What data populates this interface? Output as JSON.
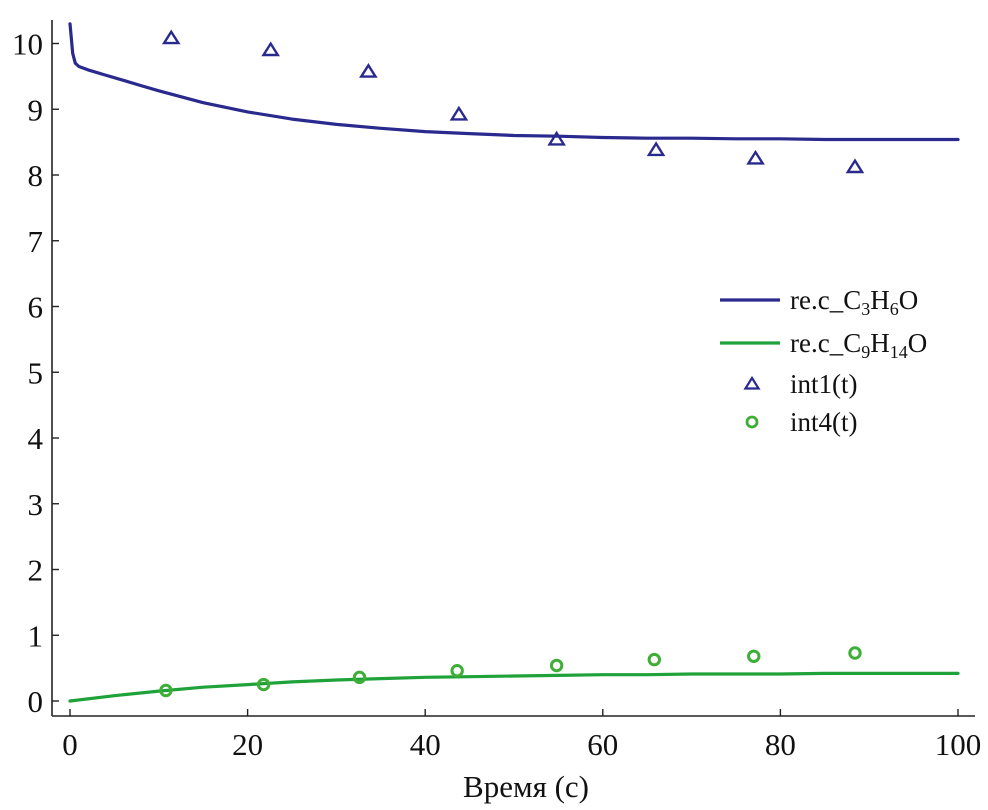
{
  "chart_data": {
    "type": "line",
    "title": "",
    "xlabel": "Время (с)",
    "ylabel": "",
    "xlim": [
      0,
      100
    ],
    "ylim": [
      0,
      10.5
    ],
    "x_ticks": [
      0,
      20,
      40,
      60,
      80,
      100
    ],
    "y_ticks": [
      0,
      1,
      2,
      3,
      4,
      5,
      6,
      7,
      8,
      9,
      10
    ],
    "grid": false,
    "legend_position": "center-right",
    "series": [
      {
        "name": "re.c_C3H6O",
        "legend": {
          "prefix": "re.c_C",
          "sub1": "3",
          "mid": "H",
          "sub2": "6",
          "suffix": "O"
        },
        "kind": "line",
        "color": "#2a2a8e",
        "x": [
          0,
          0.1,
          0.3,
          0.6,
          1,
          2,
          4,
          6,
          8,
          10,
          15,
          20,
          25,
          30,
          35,
          40,
          45,
          50,
          55,
          60,
          65,
          70,
          75,
          80,
          85,
          90,
          95,
          100
        ],
        "y": [
          10.3,
          10.15,
          9.85,
          9.7,
          9.65,
          9.6,
          9.52,
          9.44,
          9.36,
          9.28,
          9.1,
          8.96,
          8.85,
          8.77,
          8.71,
          8.66,
          8.63,
          8.6,
          8.59,
          8.57,
          8.56,
          8.56,
          8.55,
          8.55,
          8.54,
          8.54,
          8.54,
          8.54
        ]
      },
      {
        "name": "re.c_C9H14O",
        "legend": {
          "prefix": "re.c_C",
          "sub1": "9",
          "mid": "H",
          "sub2": "14",
          "suffix": "O"
        },
        "kind": "line",
        "color": "#1fa23a",
        "x": [
          0,
          5,
          10,
          15,
          20,
          25,
          30,
          35,
          40,
          45,
          50,
          55,
          60,
          65,
          70,
          75,
          80,
          85,
          90,
          95,
          100
        ],
        "y": [
          0.0,
          0.08,
          0.15,
          0.21,
          0.25,
          0.29,
          0.32,
          0.34,
          0.36,
          0.37,
          0.38,
          0.39,
          0.4,
          0.4,
          0.41,
          0.41,
          0.41,
          0.42,
          0.42,
          0.42,
          0.42
        ]
      },
      {
        "name": "int1(t)",
        "kind": "scatter",
        "marker": "triangle",
        "color": "#2a2a8e",
        "x": [
          11.4,
          22.6,
          33.6,
          43.8,
          54.8,
          66.0,
          77.2,
          88.4
        ],
        "y": [
          10.08,
          9.9,
          9.57,
          8.92,
          8.54,
          8.38,
          8.25,
          8.12
        ]
      },
      {
        "name": "int4(t)",
        "kind": "scatter",
        "marker": "circle",
        "color": "#3fae36",
        "x": [
          10.8,
          21.8,
          32.6,
          43.6,
          54.8,
          65.8,
          77.0,
          88.4
        ],
        "y": [
          0.16,
          0.25,
          0.36,
          0.46,
          0.54,
          0.63,
          0.68,
          0.73
        ]
      }
    ]
  }
}
